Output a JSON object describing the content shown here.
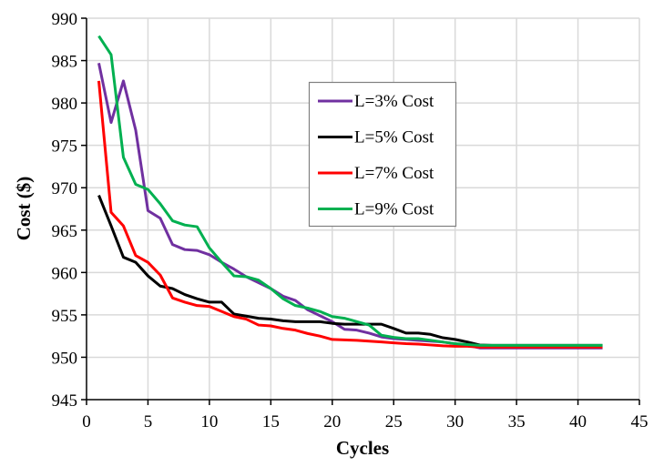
{
  "chart_data": {
    "type": "line",
    "title": "",
    "xlabel": "Cycles",
    "ylabel": "Cost ($)",
    "xlim": [
      0,
      45
    ],
    "ylim": [
      945,
      990
    ],
    "xticks": [
      0,
      5,
      10,
      15,
      20,
      25,
      30,
      35,
      40,
      45
    ],
    "yticks": [
      945,
      950,
      955,
      960,
      965,
      970,
      975,
      980,
      985,
      990
    ],
    "grid": true,
    "legend_position": "top-center",
    "x": [
      1,
      2,
      3,
      4,
      5,
      6,
      7,
      8,
      9,
      10,
      11,
      12,
      13,
      14,
      15,
      16,
      17,
      18,
      19,
      20,
      21,
      22,
      23,
      24,
      25,
      26,
      27,
      28,
      29,
      30,
      31,
      32,
      33,
      34,
      35,
      36,
      37,
      38,
      39,
      40,
      41,
      42
    ],
    "series": [
      {
        "name": "L=3% Cost",
        "color": "#7030a0",
        "values": [
          984.7,
          977.7,
          982.6,
          976.8,
          967.3,
          966.4,
          963.3,
          962.7,
          962.6,
          962.1,
          961.2,
          960.4,
          959.5,
          958.8,
          958.1,
          957.2,
          956.7,
          955.6,
          954.9,
          954.2,
          953.3,
          953.2,
          952.85,
          952.4,
          952.2,
          952.1,
          952.0,
          951.9,
          951.8,
          951.6,
          951.4,
          951.1,
          951.1,
          951.1,
          951.1,
          951.1,
          951.1,
          951.1,
          951.1,
          951.1,
          951.1,
          951.1
        ]
      },
      {
        "name": "L=5% Cost",
        "color": "#000000",
        "values": [
          969.1,
          965.5,
          961.8,
          961.2,
          959.6,
          958.4,
          958.1,
          957.4,
          956.9,
          956.5,
          956.5,
          955.1,
          954.85,
          954.6,
          954.5,
          954.3,
          954.2,
          954.2,
          954.2,
          954.0,
          953.9,
          953.9,
          953.9,
          953.9,
          953.4,
          952.85,
          952.85,
          952.7,
          952.3,
          952.1,
          951.8,
          951.45,
          951.4,
          951.4,
          951.4,
          951.4,
          951.4,
          951.4,
          951.4,
          951.4,
          951.4,
          951.4
        ]
      },
      {
        "name": "L=7% Cost",
        "color": "#ff0000",
        "values": [
          982.6,
          967.1,
          965.5,
          962.0,
          961.2,
          959.7,
          957.0,
          956.5,
          956.1,
          956.0,
          955.4,
          954.8,
          954.5,
          953.8,
          953.7,
          953.4,
          953.2,
          952.8,
          952.5,
          952.1,
          952.05,
          952.0,
          951.9,
          951.8,
          951.7,
          951.6,
          951.55,
          951.45,
          951.35,
          951.3,
          951.3,
          951.2,
          951.2,
          951.2,
          951.2,
          951.2,
          951.2,
          951.2,
          951.2,
          951.2,
          951.2,
          951.2
        ]
      },
      {
        "name": "L=9% Cost",
        "color": "#00b050",
        "values": [
          987.9,
          985.7,
          973.6,
          970.4,
          969.8,
          968.1,
          966.1,
          965.6,
          965.4,
          962.9,
          961.2,
          959.6,
          959.5,
          959.1,
          958.1,
          956.9,
          956.1,
          955.8,
          955.4,
          954.8,
          954.6,
          954.2,
          953.8,
          952.6,
          952.35,
          952.2,
          952.2,
          952.0,
          951.8,
          951.6,
          951.5,
          951.4,
          951.4,
          951.4,
          951.4,
          951.4,
          951.4,
          951.4,
          951.4,
          951.4,
          951.4,
          951.4
        ]
      }
    ]
  }
}
